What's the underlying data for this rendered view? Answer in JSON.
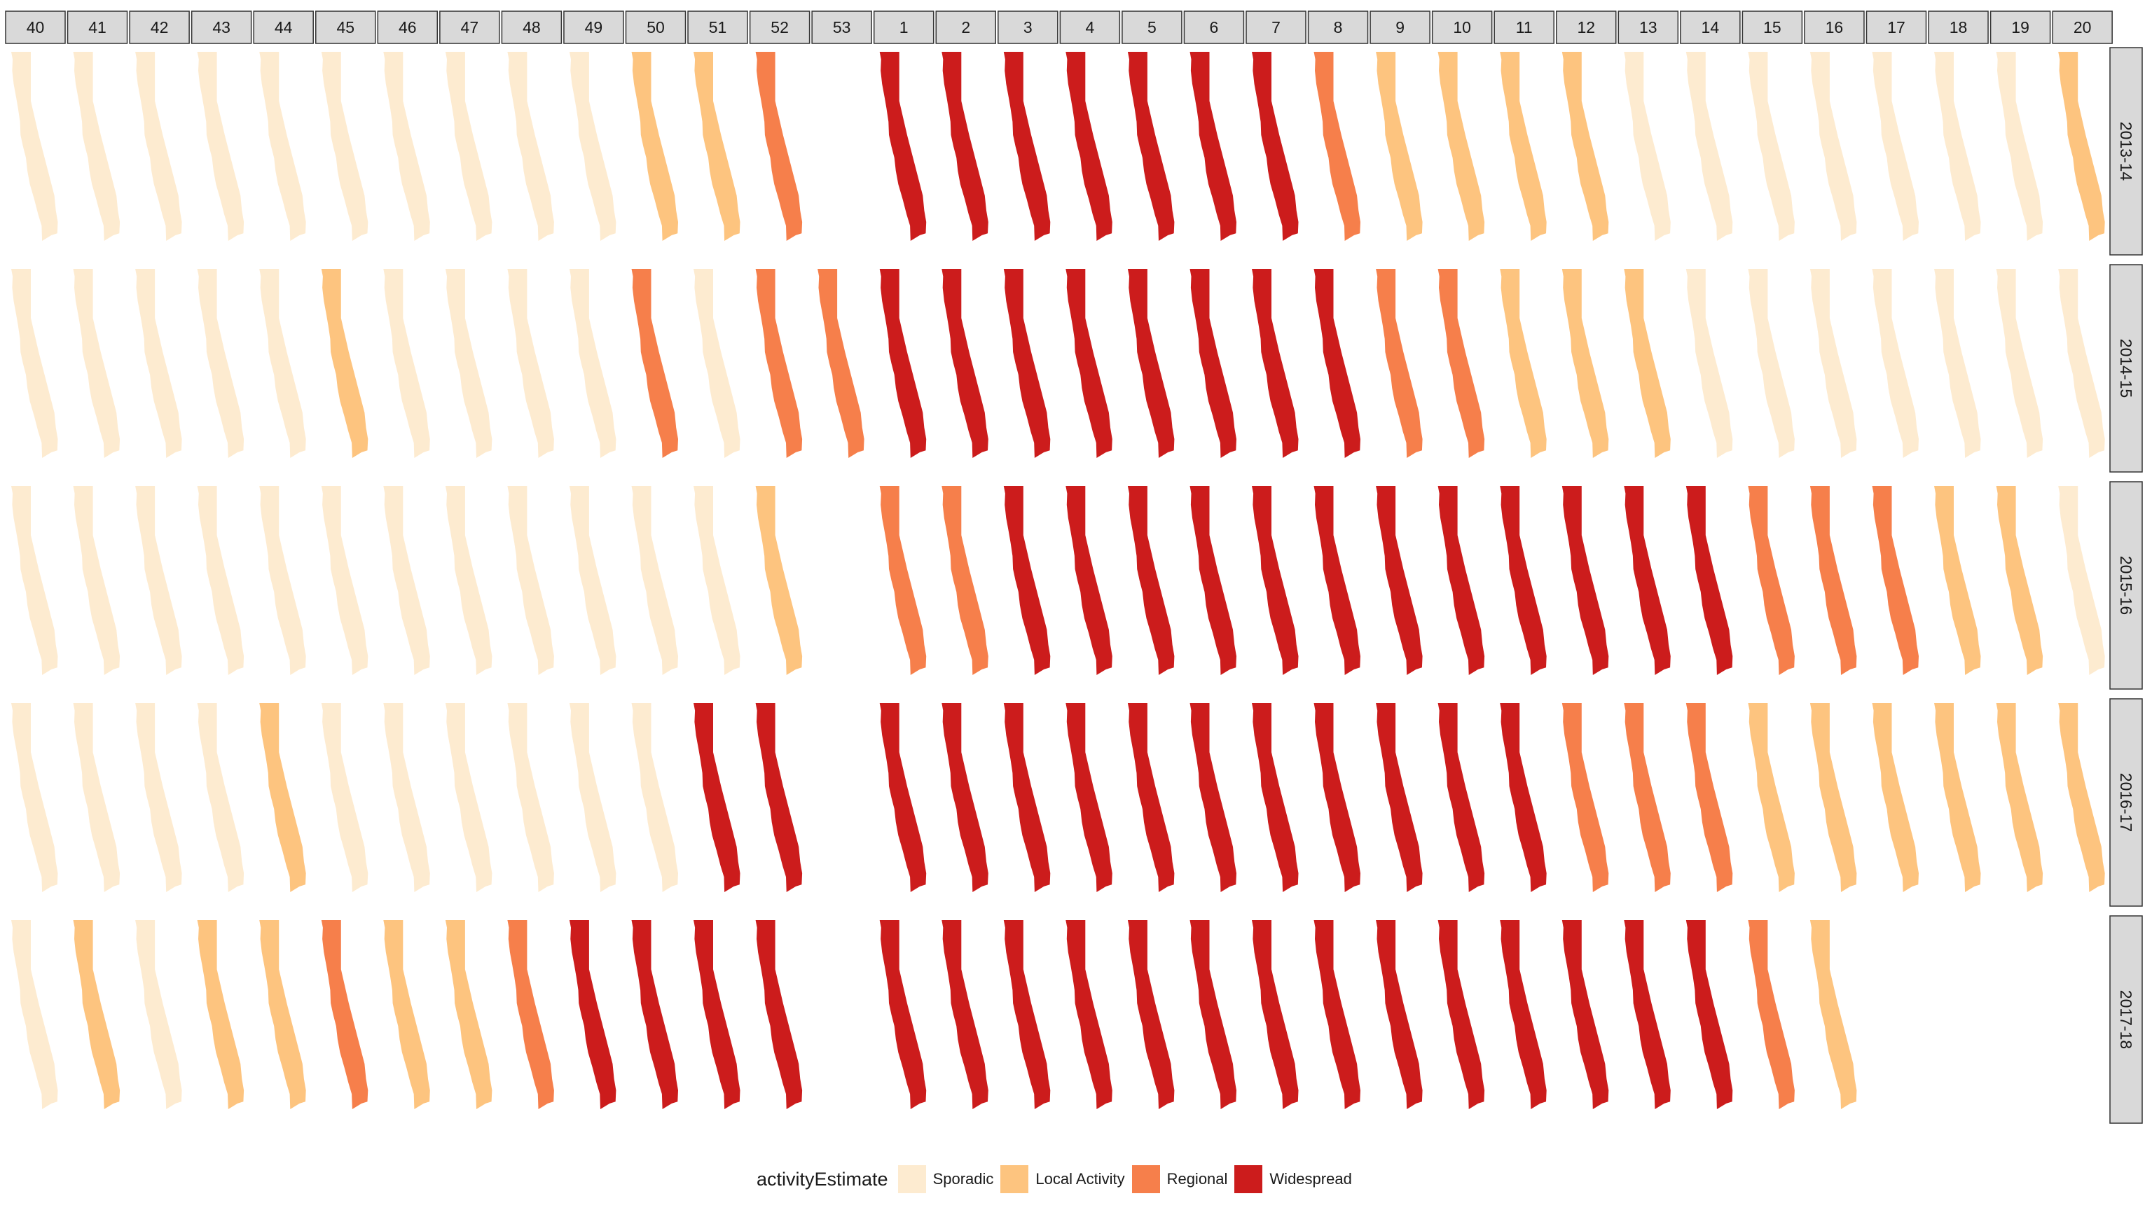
{
  "chart_data": {
    "type": "heatmap",
    "title": "",
    "xlabel": "",
    "ylabel": "",
    "weeks": [
      "40",
      "41",
      "42",
      "43",
      "44",
      "45",
      "46",
      "47",
      "48",
      "49",
      "50",
      "51",
      "52",
      "53",
      "1",
      "2",
      "3",
      "4",
      "5",
      "6",
      "7",
      "8",
      "9",
      "10",
      "11",
      "12",
      "13",
      "14",
      "15",
      "16",
      "17",
      "18",
      "19",
      "20"
    ],
    "seasons": [
      "2013-14",
      "2014-15",
      "2015-16",
      "2016-17",
      "2017-18"
    ],
    "categories": [
      "Sporadic",
      "Local Activity",
      "Regional",
      "Widespread"
    ],
    "colors": {
      "Sporadic": "#fdebd0",
      "Local Activity": "#fdc47f",
      "Regional": "#f67f4b",
      "Widespread": "#cc1c1c"
    },
    "activity": [
      [
        "Sporadic",
        "Sporadic",
        "Sporadic",
        "Sporadic",
        "Sporadic",
        "Sporadic",
        "Sporadic",
        "Sporadic",
        "Sporadic",
        "Sporadic",
        "Local Activity",
        "Local Activity",
        "Regional",
        null,
        "Widespread",
        "Widespread",
        "Widespread",
        "Widespread",
        "Widespread",
        "Widespread",
        "Widespread",
        "Regional",
        "Local Activity",
        "Local Activity",
        "Local Activity",
        "Local Activity",
        "Sporadic",
        "Sporadic",
        "Sporadic",
        "Sporadic",
        "Sporadic",
        "Sporadic",
        "Sporadic",
        "Local Activity"
      ],
      [
        "Sporadic",
        "Sporadic",
        "Sporadic",
        "Sporadic",
        "Sporadic",
        "Local Activity",
        "Sporadic",
        "Sporadic",
        "Sporadic",
        "Sporadic",
        "Regional",
        "Sporadic",
        "Regional",
        "Regional",
        "Widespread",
        "Widespread",
        "Widespread",
        "Widespread",
        "Widespread",
        "Widespread",
        "Widespread",
        "Widespread",
        "Regional",
        "Regional",
        "Local Activity",
        "Local Activity",
        "Local Activity",
        "Sporadic",
        "Sporadic",
        "Sporadic",
        "Sporadic",
        "Sporadic",
        "Sporadic",
        "Sporadic"
      ],
      [
        "Sporadic",
        "Sporadic",
        "Sporadic",
        "Sporadic",
        "Sporadic",
        "Sporadic",
        "Sporadic",
        "Sporadic",
        "Sporadic",
        "Sporadic",
        "Sporadic",
        "Sporadic",
        "Local Activity",
        null,
        "Regional",
        "Regional",
        "Widespread",
        "Widespread",
        "Widespread",
        "Widespread",
        "Widespread",
        "Widespread",
        "Widespread",
        "Widespread",
        "Widespread",
        "Widespread",
        "Widespread",
        "Widespread",
        "Regional",
        "Regional",
        "Regional",
        "Local Activity",
        "Local Activity",
        "Sporadic"
      ],
      [
        "Sporadic",
        "Sporadic",
        "Sporadic",
        "Sporadic",
        "Local Activity",
        "Sporadic",
        "Sporadic",
        "Sporadic",
        "Sporadic",
        "Sporadic",
        "Sporadic",
        "Widespread",
        "Widespread",
        null,
        "Widespread",
        "Widespread",
        "Widespread",
        "Widespread",
        "Widespread",
        "Widespread",
        "Widespread",
        "Widespread",
        "Widespread",
        "Widespread",
        "Widespread",
        "Regional",
        "Regional",
        "Regional",
        "Local Activity",
        "Local Activity",
        "Local Activity",
        "Local Activity",
        "Local Activity",
        "Local Activity"
      ],
      [
        "Sporadic",
        "Local Activity",
        "Sporadic",
        "Local Activity",
        "Local Activity",
        "Regional",
        "Local Activity",
        "Local Activity",
        "Regional",
        "Widespread",
        "Widespread",
        "Widespread",
        "Widespread",
        null,
        "Widespread",
        "Widespread",
        "Widespread",
        "Widespread",
        "Widespread",
        "Widespread",
        "Widespread",
        "Widespread",
        "Widespread",
        "Widespread",
        "Widespread",
        "Widespread",
        "Widespread",
        "Widespread",
        "Regional",
        "Local Activity",
        null,
        null,
        null,
        null
      ]
    ]
  },
  "legend": {
    "title": "activityEstimate",
    "items": [
      {
        "label": "Sporadic",
        "color": "#fdebd0"
      },
      {
        "label": "Local Activity",
        "color": "#fdc47f"
      },
      {
        "label": "Regional",
        "color": "#f67f4b"
      },
      {
        "label": "Widespread",
        "color": "#cc1c1c"
      }
    ]
  }
}
